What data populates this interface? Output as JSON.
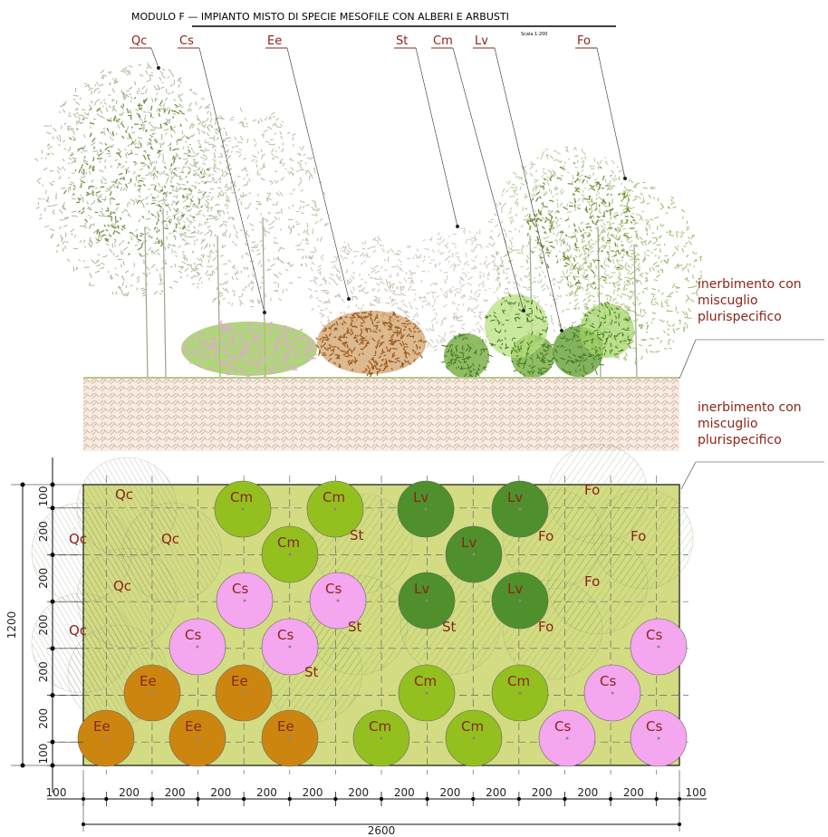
{
  "title": "MODULO F — IMPIANTO MISTO DI SPECIE MESOFILE CON ALBERI E ARBUSTI",
  "scale": "Scala 1:200",
  "elevation": {
    "labels": [
      "Qc",
      "Cs",
      "Ee",
      "St",
      "Cm",
      "Lv",
      "Fo"
    ]
  },
  "annotations": [
    {
      "lines": [
        "inerbimento con",
        "miscuglio",
        "plurispecifico"
      ]
    },
    {
      "lines": [
        "inerbimento con",
        "miscuglio",
        "plurispecifico"
      ]
    }
  ],
  "plan": {
    "plants": [
      "Cm",
      "Cm",
      "Lv",
      "Lv",
      "Cm",
      "Lv",
      "Cs",
      "Cs",
      "Lv",
      "Lv",
      "Cs",
      "Cs",
      "Cs",
      "Ee",
      "Ee",
      "Cm",
      "Cm",
      "Cs",
      "Ee",
      "Ee",
      "Ee",
      "Cm",
      "Cm",
      "Cs",
      "Cs"
    ],
    "trees": [
      "Qc",
      "Qc",
      "Qc",
      "Qc",
      "Qc",
      "St",
      "St",
      "St",
      "St",
      "Fo",
      "Fo",
      "Fo",
      "Fo",
      "Fo"
    ]
  },
  "dimensions": {
    "vertical": [
      100,
      200,
      200,
      200,
      200,
      200,
      100
    ],
    "vertical_total": 1200,
    "horizontal": [
      100,
      200,
      200,
      200,
      200,
      200,
      200,
      200,
      200,
      200,
      200,
      200,
      200,
      100
    ],
    "horizontal_total": 2600
  }
}
